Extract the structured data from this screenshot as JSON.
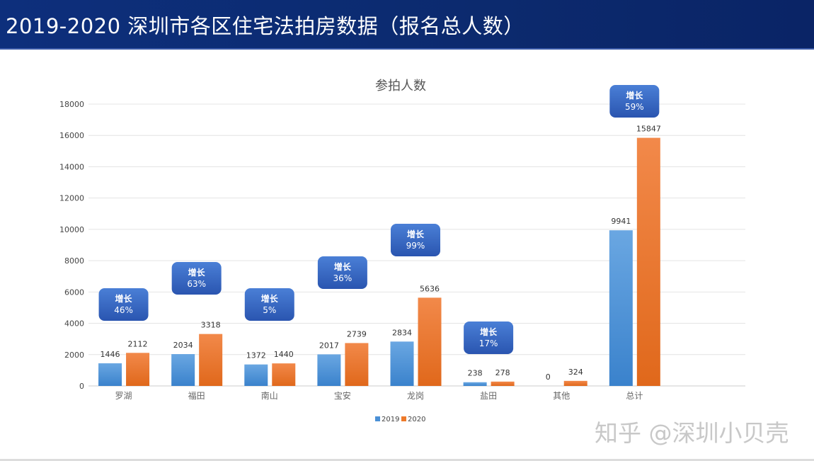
{
  "header": {
    "title": "2019-2020 深圳市各区住宅法拍房数据（报名总人数）"
  },
  "watermark": "知乎 @深圳小贝壳",
  "chart_data": {
    "type": "bar",
    "title": "参拍人数",
    "categories": [
      "罗湖",
      "福田",
      "南山",
      "宝安",
      "龙岗",
      "盐田",
      "其他",
      "总计",
      ""
    ],
    "series": [
      {
        "name": "2019",
        "color": "#4a90d6",
        "values": [
          1446,
          2034,
          1372,
          2017,
          2834,
          238,
          0,
          9941,
          null
        ]
      },
      {
        "name": "2020",
        "color": "#ee7a2a",
        "values": [
          2112,
          3318,
          1440,
          2739,
          5636,
          278,
          324,
          15847,
          null
        ]
      }
    ],
    "yticks": [
      0,
      2000,
      4000,
      6000,
      8000,
      10000,
      12000,
      14000,
      16000,
      18000
    ],
    "ylim": [
      0,
      18000
    ],
    "grid": true,
    "legend": "bottom",
    "callouts": [
      {
        "category": "罗湖",
        "label": "增长",
        "value": "46%"
      },
      {
        "category": "福田",
        "label": "增长",
        "value": "63%"
      },
      {
        "category": "南山",
        "label": "增长",
        "value": "5%"
      },
      {
        "category": "宝安",
        "label": "增长",
        "value": "36%"
      },
      {
        "category": "龙岗",
        "label": "增长",
        "value": "99%"
      },
      {
        "category": "盐田",
        "label": "增长",
        "value": "17%"
      },
      {
        "category": "总计",
        "label": "增长",
        "value": "59%"
      }
    ],
    "callout_color": "#3566c4"
  }
}
